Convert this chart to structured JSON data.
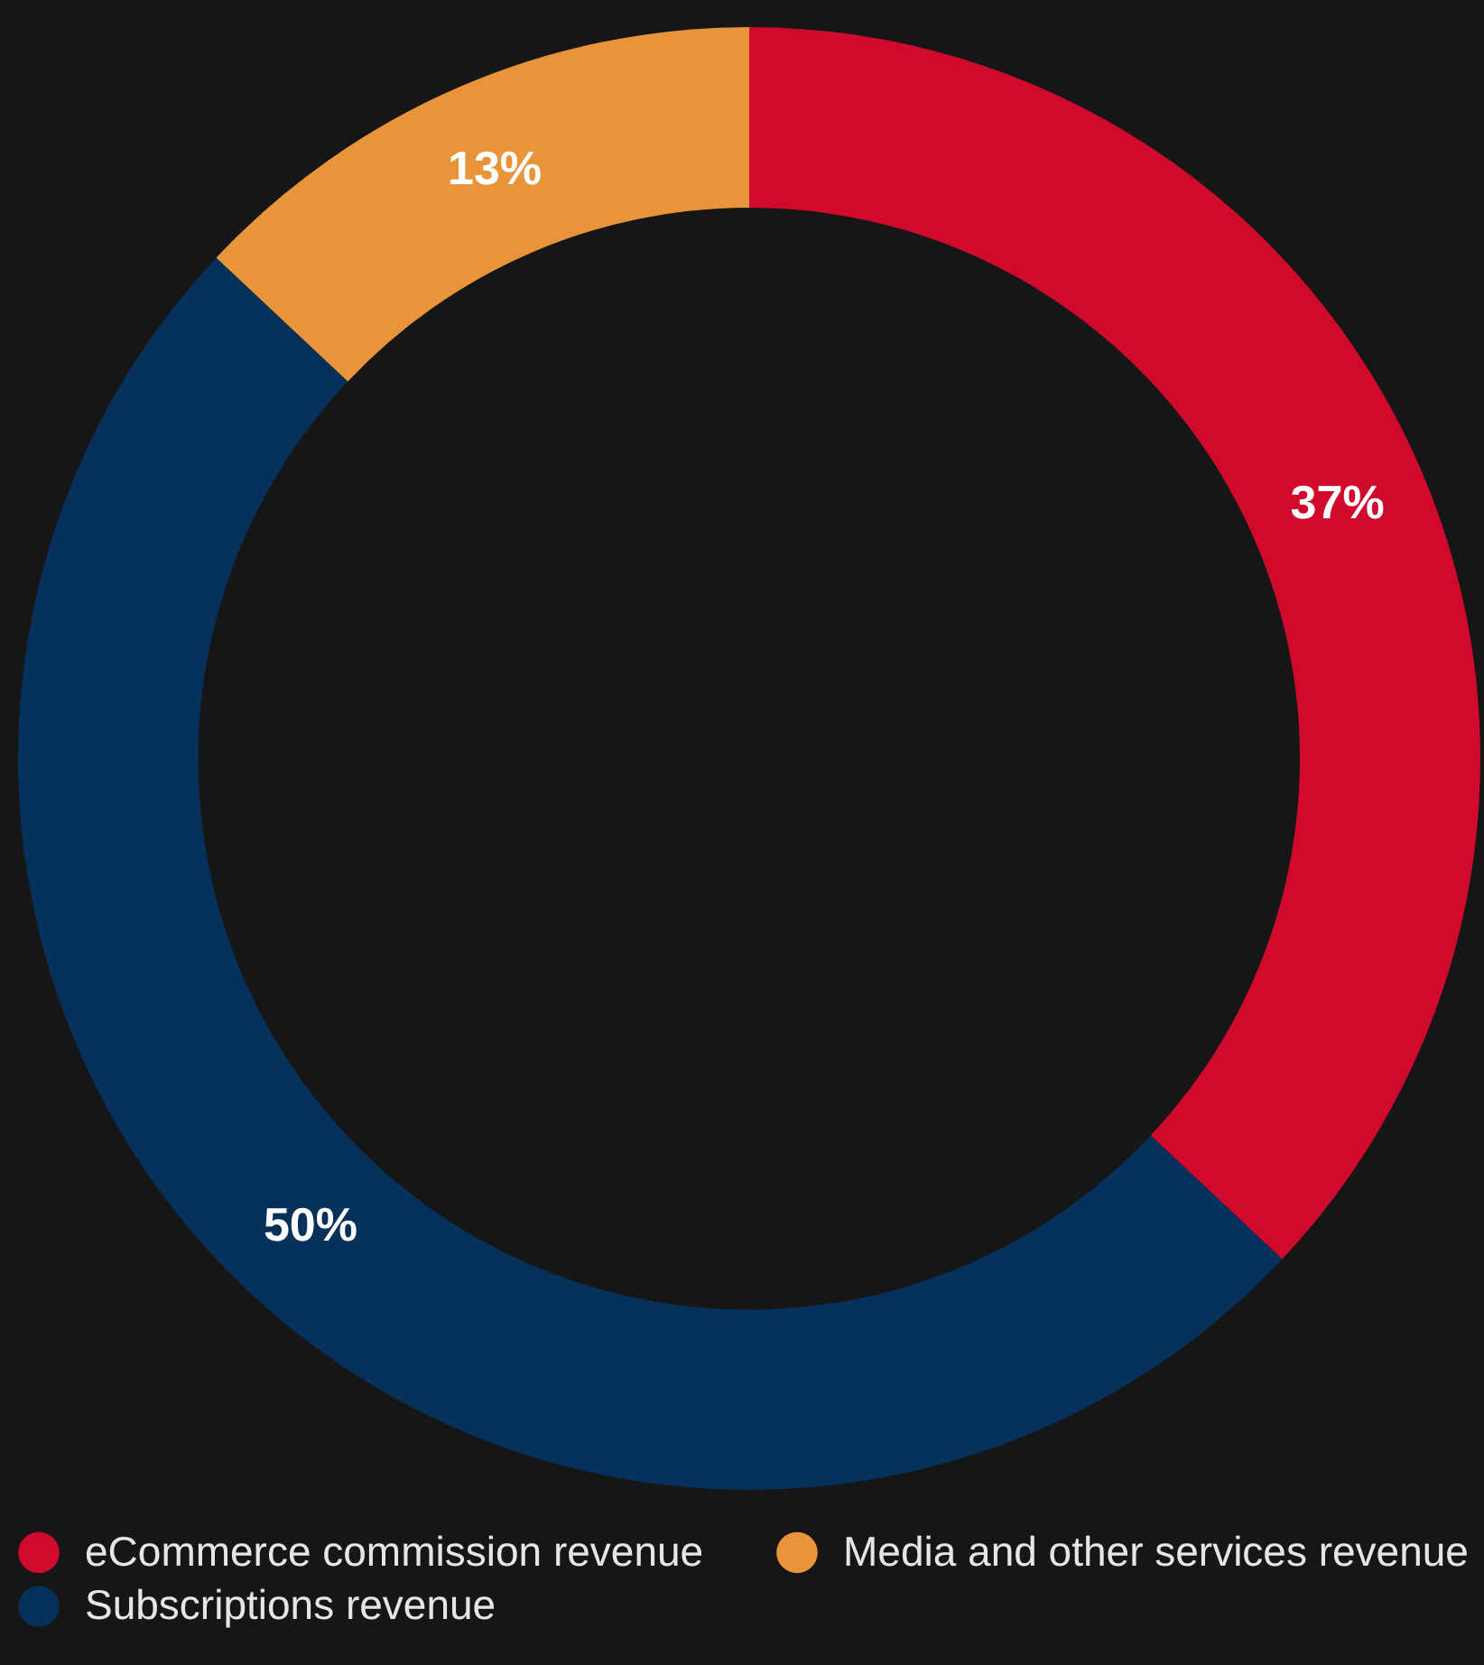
{
  "chart_data": {
    "type": "donut",
    "categories": [
      "eCommerce commission revenue",
      "Subscriptions revenue",
      "Media and other services revenue"
    ],
    "values": [
      37,
      50,
      13
    ],
    "colors": [
      "#cf0a2c",
      "#06315a",
      "#e8943a"
    ],
    "value_labels": [
      "37%",
      "50%",
      "13%"
    ],
    "legend": "bottom left"
  }
}
